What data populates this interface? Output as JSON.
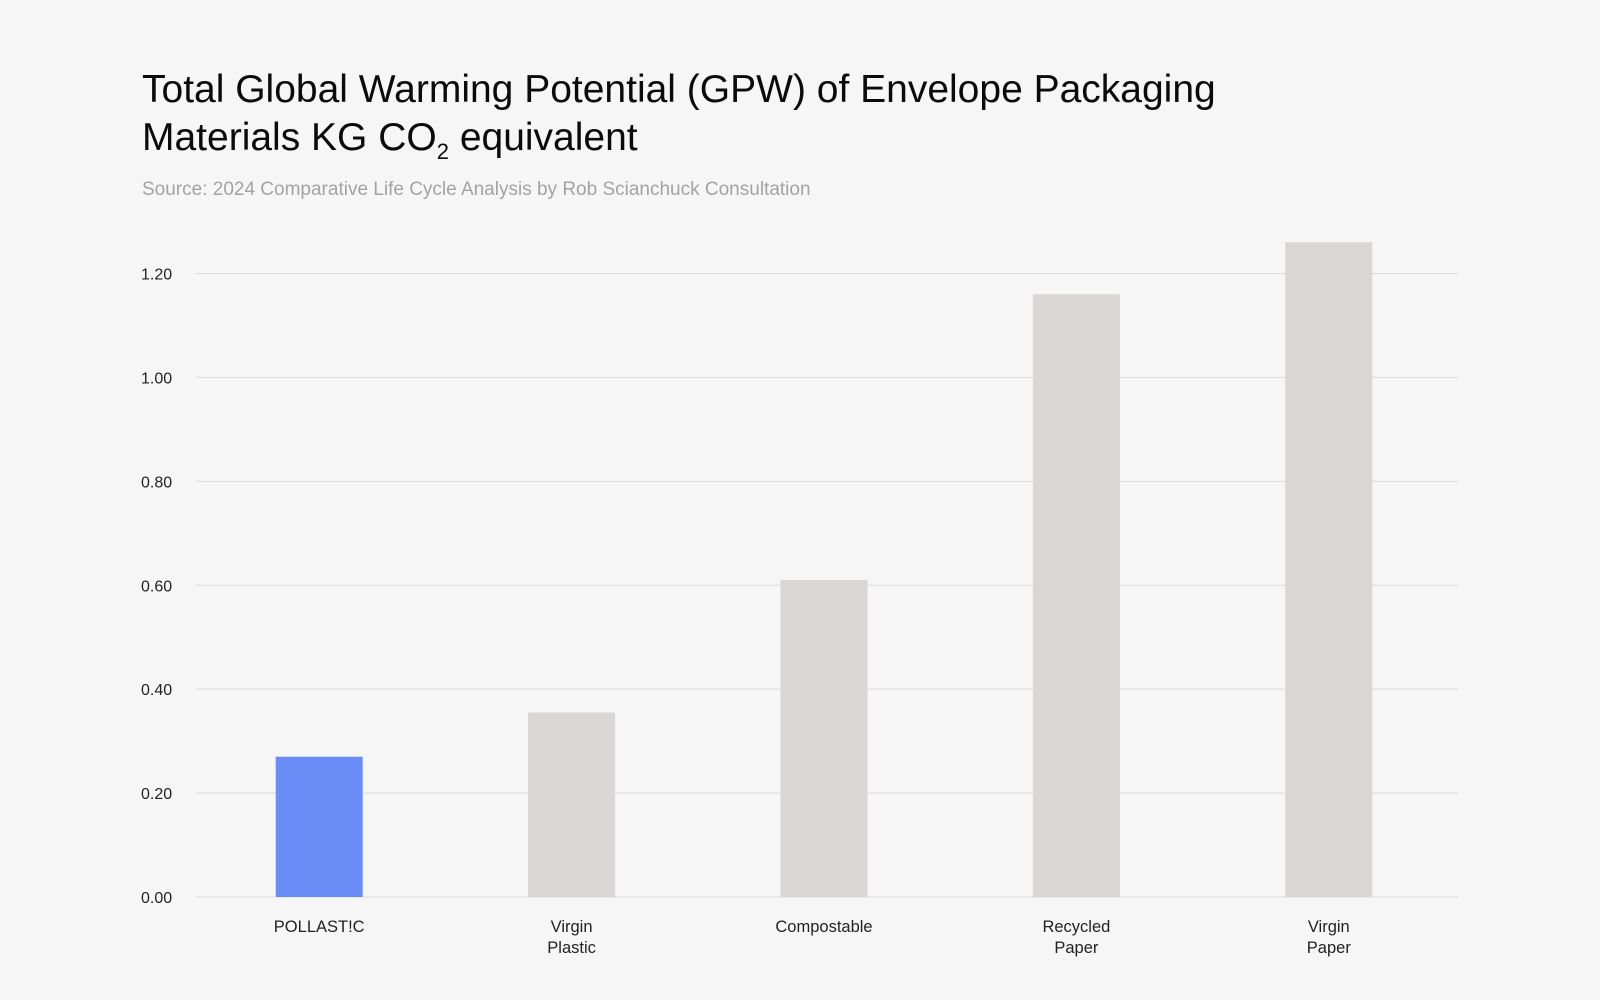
{
  "chart_data": {
    "type": "bar",
    "title_line1": "Total Global Warming Potential (GPW) of Envelope Packaging",
    "title_line2": "Materials KG CO",
    "title_sub": "2",
    "title_rest": " equivalent",
    "subtitle": "Source: 2024 Comparative Life Cycle Analysis by Rob Scianchuck Consultation",
    "xlabel": "",
    "ylabel": "",
    "categories": [
      [
        "POLLAST!C"
      ],
      [
        "Virgin",
        "Plastic"
      ],
      [
        "Compostable"
      ],
      [
        "Recycled",
        "Paper"
      ],
      [
        "Virgin",
        "Paper"
      ]
    ],
    "values": [
      0.27,
      0.355,
      0.61,
      1.16,
      1.26
    ],
    "highlight_index": 0,
    "colors": {
      "highlight": "#6a8cf7",
      "default": "#d9d6d5",
      "grid": "#dcdcdc",
      "background": "#f6f6f6"
    },
    "ylim": [
      0,
      1.2
    ],
    "yticks": [
      "0.00",
      "0.20",
      "0.40",
      "0.60",
      "0.80",
      "1.00",
      "1.20"
    ],
    "grid": true,
    "legend": "none"
  }
}
